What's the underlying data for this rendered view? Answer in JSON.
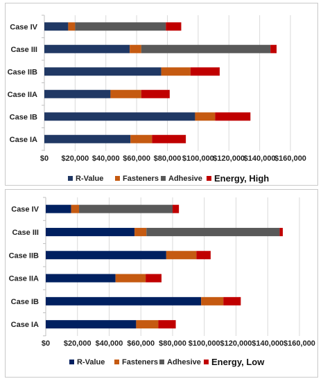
{
  "chart_data": [
    {
      "type": "bar",
      "orientation": "horizontal",
      "stacked": true,
      "categories": [
        "Case IV",
        "Case III",
        "Case IIB",
        "Case IIA",
        "Case IB",
        "Case IA"
      ],
      "series": [
        {
          "name": "R-Value",
          "values": [
            15500,
            55500,
            76000,
            43000,
            98000,
            56000
          ]
        },
        {
          "name": "Fasteners",
          "values": [
            4500,
            7500,
            19000,
            20000,
            13000,
            14000
          ]
        },
        {
          "name": "Adhesive",
          "values": [
            59000,
            84000,
            0,
            0,
            0,
            0
          ]
        },
        {
          "name": "Energy, High",
          "values": [
            10000,
            4000,
            19000,
            18500,
            23000,
            22000
          ]
        }
      ],
      "xlim": [
        0,
        160000
      ],
      "xticks": [
        "$0",
        "$20,000",
        "$40,000",
        "$60,000",
        "$80,000",
        "$100,000",
        "$120,000",
        "$140,000",
        "$160,000"
      ],
      "legend_position": "bottom",
      "grid": true
    },
    {
      "type": "bar",
      "orientation": "horizontal",
      "stacked": true,
      "categories": [
        "Case IV",
        "Case III",
        "Case IIB",
        "Case IIA",
        "Case IB",
        "Case IA"
      ],
      "series": [
        {
          "name": "R-Value",
          "values": [
            16000,
            56000,
            76000,
            44000,
            98000,
            57000
          ]
        },
        {
          "name": "Fasteners",
          "values": [
            5000,
            7500,
            19000,
            19000,
            14000,
            14000
          ]
        },
        {
          "name": "Adhesive",
          "values": [
            59000,
            84000,
            0,
            0,
            0,
            0
          ]
        },
        {
          "name": "Energy, Low",
          "values": [
            4000,
            2000,
            9000,
            10000,
            11000,
            11000
          ]
        }
      ],
      "xlim": [
        0,
        160000
      ],
      "xticks": [
        "$0",
        "$20,000",
        "$40,000",
        "$60,000",
        "$80,000",
        "$100,000",
        "$120,000",
        "$140,000",
        "$160,000"
      ],
      "legend_position": "bottom",
      "grid": true
    }
  ],
  "colors": {
    "top": [
      "#203864",
      "#c55a11",
      "#595959",
      "#c00000"
    ],
    "bottom": [
      "#002060",
      "#c55a11",
      "#595959",
      "#c00000"
    ]
  }
}
